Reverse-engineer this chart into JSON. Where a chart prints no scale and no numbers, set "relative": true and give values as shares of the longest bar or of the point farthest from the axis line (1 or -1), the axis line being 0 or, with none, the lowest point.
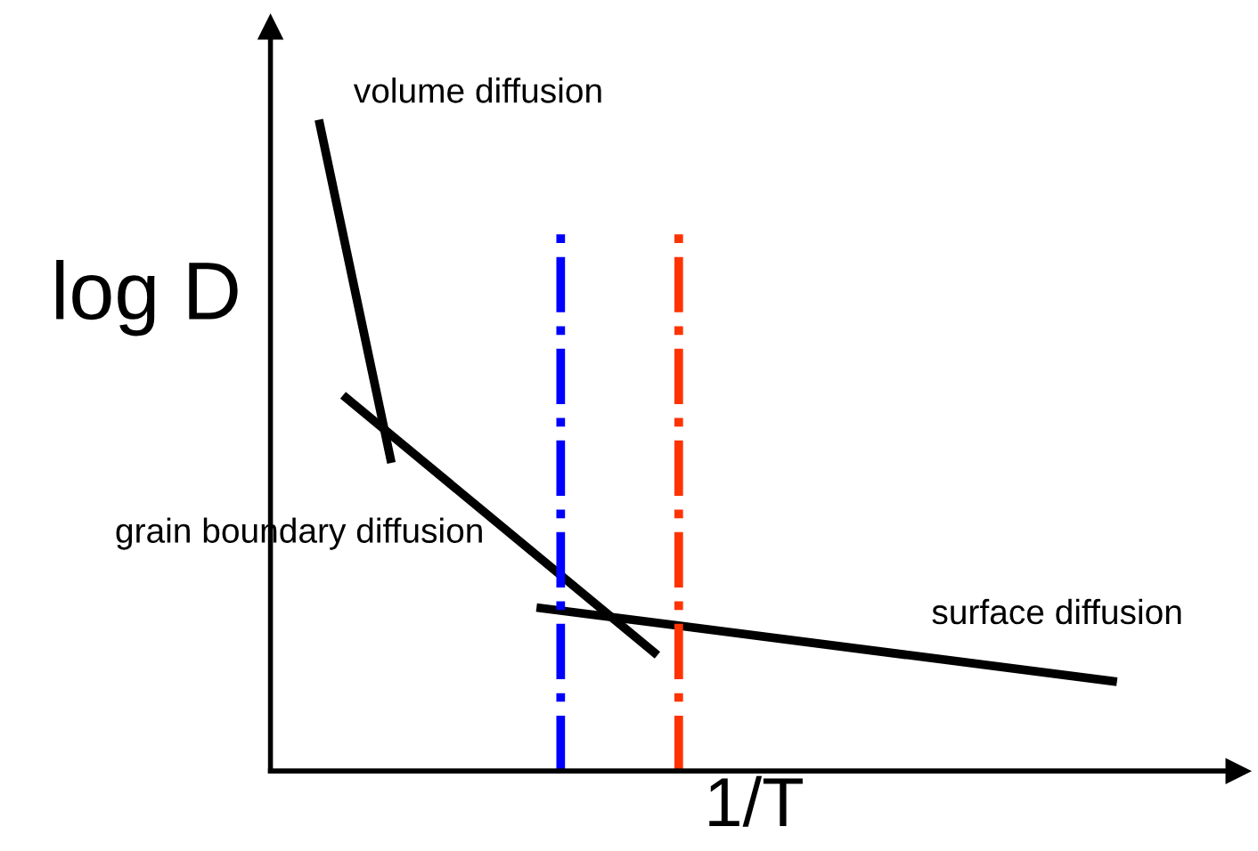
{
  "chart_data": {
    "type": "line",
    "relative": true,
    "xlabel": "1/T",
    "ylabel": "log D",
    "marker": "none",
    "line_style": "solid",
    "categories": [
      null,
      null,
      null,
      null,
      null,
      null,
      null,
      null,
      null,
      null,
      null,
      null,
      null,
      null,
      null,
      null,
      null,
      null,
      null,
      null,
      null,
      null,
      null,
      null,
      null,
      null,
      null,
      null,
      null,
      null,
      null,
      null,
      null,
      null,
      null,
      null,
      null,
      null,
      null,
      null
    ],
    "series": [
      {
        "name": "volume diffusion",
        "color": "#000000",
        "values": [
          null,
          null,
          1.0,
          null,
          null,
          0.473,
          null,
          null,
          null,
          null,
          null,
          null,
          null,
          null,
          null,
          null,
          null,
          null,
          null,
          null,
          null,
          null,
          null,
          null,
          null,
          null,
          null,
          null,
          null,
          null,
          null,
          null,
          null,
          null,
          null,
          null,
          null,
          null,
          null,
          null
        ]
      },
      {
        "name": "grain boundary diffusion",
        "color": "#000000",
        "values": [
          null,
          null,
          null,
          0.577,
          null,
          null,
          null,
          null,
          null,
          null,
          null,
          null,
          null,
          null,
          null,
          null,
          0.178,
          null,
          null,
          null,
          null,
          null,
          null,
          null,
          null,
          null,
          null,
          null,
          null,
          null,
          null,
          null,
          null,
          null,
          null,
          null,
          null,
          null,
          null,
          null
        ]
      },
      {
        "name": "surface diffusion",
        "color": "#000000",
        "values": [
          null,
          null,
          null,
          null,
          null,
          null,
          null,
          null,
          null,
          null,
          null,
          0.251,
          null,
          null,
          null,
          null,
          null,
          null,
          null,
          null,
          null,
          null,
          null,
          null,
          null,
          null,
          null,
          null,
          null,
          null,
          null,
          null,
          null,
          null,
          null,
          0.137,
          null,
          null,
          null,
          null
        ]
      }
    ]
  }
}
